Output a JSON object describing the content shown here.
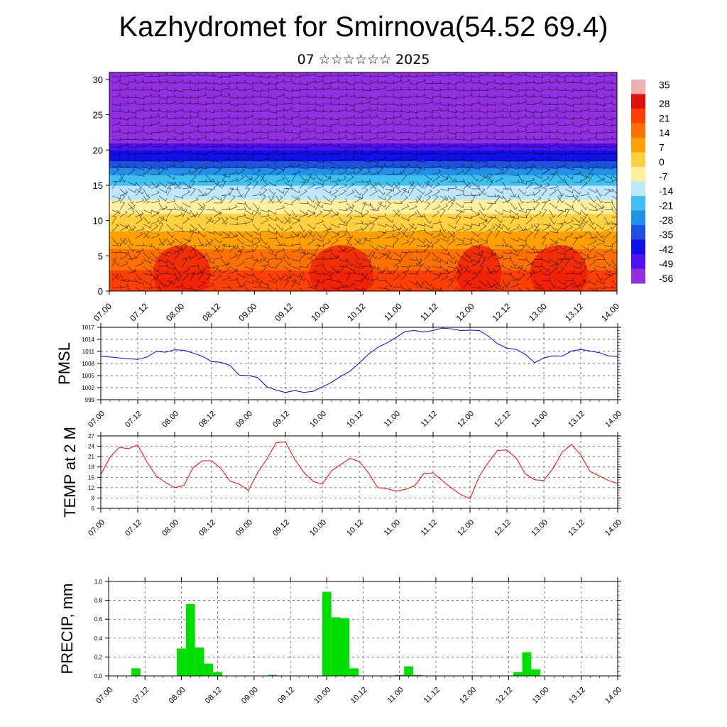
{
  "title": "Kazhydromet for Smirnova(54.52 69.4)",
  "subtitle": "07 ☆☆☆☆☆☆ 2025",
  "colors": {
    "pmsl_line": "#0000ff",
    "temp_line": "#ff0000",
    "precip_bar": "#00dd00"
  },
  "time_labels": [
    "07.00",
    "07.12",
    "08.00",
    "08.12",
    "09.00",
    "09.12",
    "10.00",
    "10.12",
    "11.00",
    "11.12",
    "12.00",
    "12.12",
    "13.00",
    "13.12",
    "14.00"
  ],
  "chart_data": [
    {
      "type": "heatmap",
      "ylim": [
        0,
        31
      ],
      "yticks": [
        0,
        5,
        10,
        15,
        20,
        25,
        30
      ],
      "colorbar_labels": [
        "35",
        "28",
        "21",
        "14",
        "7",
        "0",
        "-7",
        "-14",
        "-21",
        "-28",
        "-35",
        "-42",
        "-49",
        "-56"
      ],
      "temperature_by_height": [
        {
          "h": 0,
          "t": 30
        },
        {
          "h": 5,
          "t": 21
        },
        {
          "h": 10,
          "t": 7
        },
        {
          "h": 15,
          "t": -10
        },
        {
          "h": 18,
          "t": -27
        },
        {
          "h": 21,
          "t": -45
        },
        {
          "h": 25,
          "t": -58
        },
        {
          "h": 31,
          "t": -53
        }
      ],
      "colors": [
        "#f0b0b0",
        "#e01010",
        "#ff4000",
        "#ff7000",
        "#ffa000",
        "#ffd040",
        "#fff0a0",
        "#bfe6ff",
        "#40c0f0",
        "#2090e8",
        "#2050e0",
        "#1010e8",
        "#5010f0",
        "#9030e0"
      ]
    },
    {
      "type": "line",
      "ylabel": "PMSL",
      "ylim": [
        999,
        1017
      ],
      "yticks": [
        999,
        1002,
        1005,
        1008,
        1011,
        1014,
        1017
      ],
      "series": [
        {
          "x": [
            0,
            0.125,
            0.25,
            0.375,
            0.5,
            0.625,
            0.75,
            0.875,
            1,
            1.125,
            1.25,
            1.375,
            1.5,
            1.625,
            1.75,
            1.875,
            2,
            2.125,
            2.25,
            2.375,
            2.5,
            2.625,
            2.75,
            2.875,
            3,
            3.125,
            3.25,
            3.375,
            3.5,
            3.625,
            3.75,
            3.875,
            4,
            4.125,
            4.25,
            4.375,
            4.5,
            4.625,
            4.75,
            4.875,
            5,
            5.125,
            5.25,
            5.375,
            5.5,
            5.625,
            5.75,
            5.875,
            6,
            6.125,
            6.25,
            6.375,
            6.5,
            6.625,
            6.75,
            6.875,
            7
          ],
          "values": [
            1009.8,
            1009.6,
            1009.4,
            1009.2,
            1009.0,
            1009.6,
            1011.0,
            1010.8,
            1011.4,
            1011.3,
            1010.6,
            1009.8,
            1008.5,
            1008.3,
            1007.5,
            1005.1,
            1005.0,
            1004.5,
            1002.2,
            1001.4,
            1000.8,
            1001.3,
            1000.8,
            1001.1,
            1002.2,
            1003.3,
            1004.8,
            1006.1,
            1008.1,
            1010.3,
            1012.0,
            1013.1,
            1014.5,
            1016.0,
            1016.2,
            1015.8,
            1016.2,
            1016.8,
            1016.6,
            1016.2,
            1016.3,
            1016.2,
            1014.8,
            1012.9,
            1011.8,
            1011.5,
            1010.3,
            1008.2,
            1009.4,
            1009.9,
            1009.8,
            1011.1,
            1011.5,
            1011.1,
            1010.7,
            1009.9,
            1009.7
          ]
        }
      ]
    },
    {
      "type": "line",
      "ylabel": "TEMP at 2 M",
      "ylim": [
        6,
        27
      ],
      "yticks": [
        6,
        9,
        12,
        15,
        18,
        21,
        24,
        27
      ],
      "series": [
        {
          "x": [
            0,
            0.125,
            0.25,
            0.375,
            0.5,
            0.625,
            0.75,
            0.875,
            1,
            1.125,
            1.25,
            1.375,
            1.5,
            1.625,
            1.75,
            1.875,
            2,
            2.125,
            2.25,
            2.375,
            2.5,
            2.625,
            2.75,
            2.875,
            3,
            3.125,
            3.25,
            3.375,
            3.5,
            3.625,
            3.75,
            3.875,
            4,
            4.125,
            4.25,
            4.375,
            4.5,
            4.625,
            4.75,
            4.875,
            5,
            5.125,
            5.25,
            5.375,
            5.5,
            5.625,
            5.75,
            5.875,
            6,
            6.125,
            6.25,
            6.375,
            6.5,
            6.625,
            6.75,
            6.875,
            7
          ],
          "values": [
            15.8,
            20.8,
            23.7,
            23.3,
            24.4,
            19.4,
            15.4,
            13.5,
            12.0,
            12.6,
            17.8,
            19.8,
            19.8,
            17.6,
            13.9,
            13.0,
            11.2,
            16.4,
            20.3,
            25.0,
            25.3,
            20.3,
            16.4,
            13.8,
            13.0,
            16.9,
            18.7,
            20.5,
            19.6,
            16.3,
            12.0,
            11.7,
            11.0,
            11.5,
            12.5,
            16.1,
            16.3,
            14.0,
            11.9,
            10.0,
            8.8,
            15.3,
            19.4,
            22.8,
            22.9,
            20.6,
            16.0,
            14.3,
            14.1,
            17.6,
            22.3,
            24.5,
            21.5,
            16.7,
            15.4,
            14.1,
            13.2
          ]
        }
      ]
    },
    {
      "type": "bar",
      "ylabel": "PRECIP, mm",
      "ylim": [
        0,
        1.0
      ],
      "yticks": [
        "0.0",
        "0.2",
        "0.4",
        "0.6",
        "0.8",
        "1.0"
      ],
      "x": [
        0.375,
        1.0,
        1.125,
        1.25,
        1.375,
        1.5,
        2.25,
        3.0,
        3.125,
        3.25,
        3.375,
        4.0,
        4.125,
        4.25,
        5.625,
        5.75,
        5.875
      ],
      "values": [
        0.08,
        0.29,
        0.76,
        0.3,
        0.13,
        0.04,
        0.01,
        0.89,
        0.62,
        0.61,
        0.08,
        0.01,
        0.1,
        0.01,
        0.04,
        0.25,
        0.07
      ]
    }
  ]
}
